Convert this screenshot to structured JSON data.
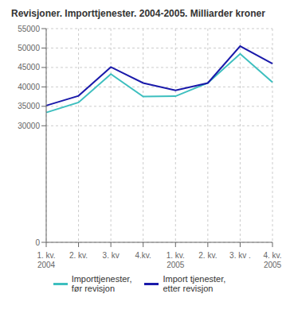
{
  "chart_data": {
    "type": "line",
    "title": "Revisjoner. Importtjenester. 2004-2005. Milliarder kroner",
    "categories": [
      "1. kv.\n2004",
      "2. kv.",
      "3. kv",
      "4.kv.",
      "1. kv.\n2005",
      "2. kv.",
      "3. kv .",
      "4. kv.\n2005"
    ],
    "series": [
      {
        "name": "Importtjenester,\nfør revisjon",
        "color": "#3dbfbf",
        "values": [
          33400,
          36000,
          43300,
          37500,
          37600,
          41000,
          48500,
          41200
        ]
      },
      {
        "name": "Import tjenester,\netter revisjon",
        "color": "#1a1aaa",
        "values": [
          35200,
          37700,
          45100,
          41000,
          39100,
          41000,
          50500,
          46000
        ]
      }
    ],
    "ylim": [
      0,
      55000
    ],
    "yticks": [
      0,
      30000,
      35000,
      40000,
      45000,
      50000,
      55000
    ],
    "grid": true,
    "legend": "bottom"
  }
}
